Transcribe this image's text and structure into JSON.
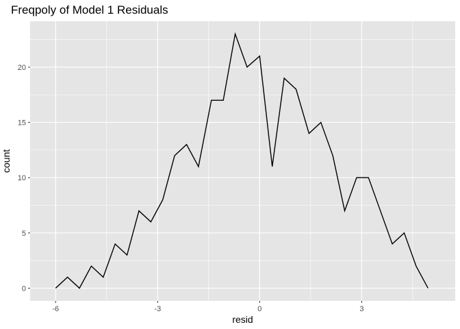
{
  "chart_data": {
    "type": "line",
    "title": "Freqpoly of Model 1 Residuals",
    "xlabel": "resid",
    "ylabel": "count",
    "xlim": [
      -6.75,
      5.75
    ],
    "ylim": [
      -1.15,
      24.15
    ],
    "x_ticks": [
      -6,
      -3,
      0,
      3
    ],
    "x_tick_labels": [
      "-6",
      "-3",
      "0",
      "3"
    ],
    "y_ticks": [
      0,
      5,
      10,
      15,
      20
    ],
    "y_tick_labels": [
      "0",
      "5",
      "10",
      "15",
      "20"
    ],
    "grid": true,
    "background": "#e5e5e5",
    "grid_color": "#ffffff",
    "line_color": "#000000",
    "series": [
      {
        "x": [
          -6.0,
          -5.65,
          -5.3,
          -4.95,
          -4.6,
          -4.25,
          -3.9,
          -3.55,
          -3.2,
          -2.85,
          -2.5,
          -2.15,
          -1.8,
          -1.42,
          -1.07,
          -0.72,
          -0.37,
          0.0,
          0.37,
          0.72,
          1.07,
          1.45,
          1.8,
          2.15,
          2.5,
          2.85,
          3.2,
          3.55,
          3.9,
          4.25,
          4.6,
          4.95
        ],
        "y": [
          0,
          1,
          0,
          2,
          1,
          4,
          3,
          7,
          6,
          8,
          12,
          13,
          11,
          17,
          17,
          23,
          20,
          21,
          11,
          19,
          18,
          14,
          15,
          12,
          7,
          10,
          10,
          7,
          4,
          5,
          2,
          0
        ]
      }
    ]
  }
}
